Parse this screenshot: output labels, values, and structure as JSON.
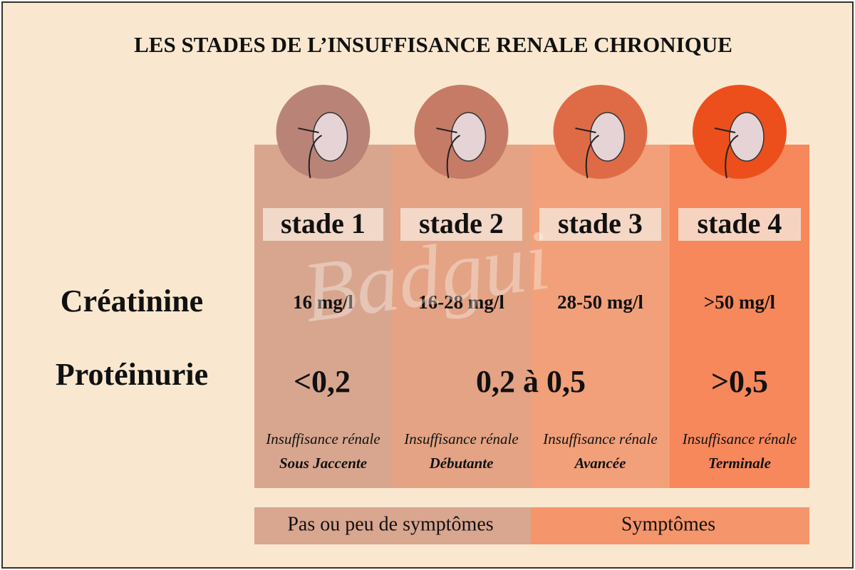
{
  "title": "LES STADES DE L’INSUFFISANCE RENALE CHRONIQUE",
  "row_labels": [
    "Créatinine",
    "Protéinurie"
  ],
  "stages": [
    {
      "label": "stade 1",
      "creatinine": "16 mg/l",
      "description": "Insuffisance rénale",
      "qualifier": "Sous Jaccente"
    },
    {
      "label": "stade 2",
      "creatinine": "16-28 mg/l",
      "description": "Insuffisance rénale",
      "qualifier": "Débutante"
    },
    {
      "label": "stade 3",
      "creatinine": "28-50 mg/l",
      "description": "Insuffisance rénale",
      "qualifier": "Avancée"
    },
    {
      "label": "stade 4",
      "creatinine": ">50 mg/l",
      "description": "Insuffisance rénale",
      "qualifier": "Terminale"
    }
  ],
  "proteinuria": [
    "<0,2",
    "0,2 à 0,5",
    ">0,5"
  ],
  "symptoms": [
    "Pas ou peu de symptômes",
    "Symptômes"
  ],
  "watermark": "Badgui"
}
